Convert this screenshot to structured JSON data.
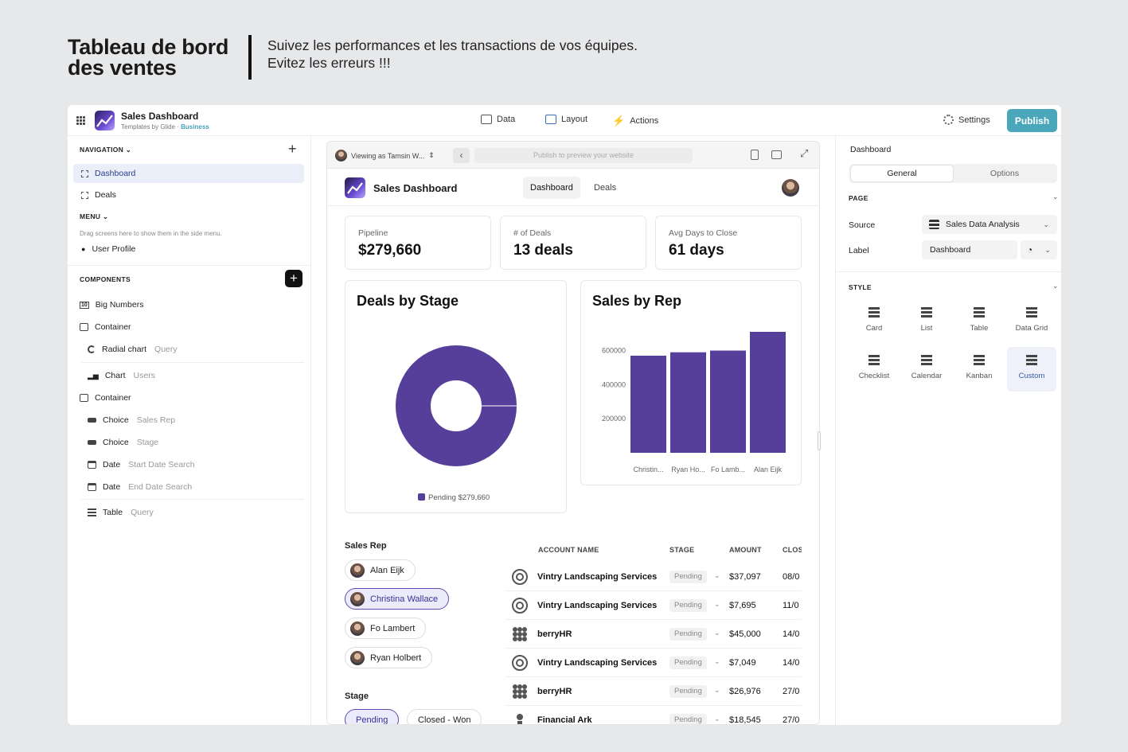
{
  "hero": {
    "title_line1": "Tableau de bord",
    "title_line2": "des ventes",
    "subtitle_line1": "Suivez les performances et les transactions de vos équipes.",
    "subtitle_line2": "Evitez les erreurs !!!"
  },
  "app": {
    "name": "Sales Dashboard",
    "sub_prefix": "Templates by Glide · ",
    "sub_plan": "Business"
  },
  "topnav": {
    "data": "Data",
    "layout": "Layout",
    "actions": "Actions",
    "settings": "Settings",
    "publish": "Publish"
  },
  "left": {
    "navigation_label": "NAVIGATION",
    "nav_items": [
      "Dashboard",
      "Deals"
    ],
    "menu_label": "MENU",
    "menu_hint": "Drag screens here to show them in the side menu.",
    "user_profile": "User Profile",
    "components_label": "COMPONENTS",
    "components": [
      {
        "name": "Big Numbers",
        "source": ""
      },
      {
        "name": "Container",
        "source": ""
      },
      {
        "name": "Radial chart",
        "source": "Query"
      },
      {
        "name": "Chart",
        "source": "Users"
      },
      {
        "name": "Container",
        "source": ""
      },
      {
        "name": "Choice",
        "source": "Sales Rep"
      },
      {
        "name": "Choice",
        "source": "Stage"
      },
      {
        "name": "Date",
        "source": "Start Date Search"
      },
      {
        "name": "Date",
        "source": "End Date Search"
      },
      {
        "name": "Table",
        "source": "Query"
      }
    ]
  },
  "preview": {
    "viewing": "Viewing as Tamsin W...",
    "url_placeholder": "Publish to preview your website",
    "site_title": "Sales Dashboard",
    "tabs": [
      "Dashboard",
      "Deals"
    ],
    "stats": [
      {
        "label": "Pipeline",
        "value": "$279,660"
      },
      {
        "label": "# of Deals",
        "value": "13 deals"
      },
      {
        "label": "Avg Days to Close",
        "value": "61 days"
      }
    ],
    "sales_rep_label": "Sales Rep",
    "reps": [
      "Alan Eijk",
      "Christina Wallace",
      "Fo Lambert",
      "Ryan Holbert"
    ],
    "stage_label": "Stage",
    "stages": [
      "Pending",
      "Closed - Won"
    ],
    "table": {
      "headers": [
        "ACCOUNT NAME",
        "STAGE",
        "AMOUNT",
        "CLOS"
      ],
      "rows": [
        {
          "account": "Vintry Landscaping Services",
          "stage": "Pending",
          "amount": "$37,097",
          "date": "08/0"
        },
        {
          "account": "Vintry Landscaping Services",
          "stage": "Pending",
          "amount": "$7,695",
          "date": "11/0"
        },
        {
          "account": "berryHR",
          "stage": "Pending",
          "amount": "$45,000",
          "date": "14/0"
        },
        {
          "account": "Vintry Landscaping Services",
          "stage": "Pending",
          "amount": "$7,049",
          "date": "14/0"
        },
        {
          "account": "berryHR",
          "stage": "Pending",
          "amount": "$26,976",
          "date": "27/0"
        },
        {
          "account": "Financial Ark",
          "stage": "Pending",
          "amount": "$18,545",
          "date": "27/0"
        }
      ]
    }
  },
  "chart_data": [
    {
      "type": "pie",
      "title": "Deals by Stage",
      "slices": [
        {
          "label": "Pending",
          "value": 279660,
          "display": "Pending $279,660"
        }
      ],
      "legend_position": "bottom",
      "color": "#553f9a"
    },
    {
      "type": "bar",
      "title": "Sales by Rep",
      "categories": [
        "Christin...",
        "Ryan Ho...",
        "Fo Lamb...",
        "Alan Eijk"
      ],
      "values": [
        570000,
        590000,
        600000,
        710000
      ],
      "ylim": [
        0,
        710000
      ],
      "yticks": [
        200000,
        400000,
        600000
      ],
      "color": "#553f9a"
    }
  ],
  "right": {
    "title": "Dashboard",
    "tabs": [
      "General",
      "Options"
    ],
    "page_label": "PAGE",
    "source_label": "Source",
    "source_value": "Sales Data Analysis",
    "label_label": "Label",
    "label_value": "Dashboard",
    "style_label": "STYLE",
    "styles": [
      "Card",
      "List",
      "Table",
      "Data Grid",
      "Checklist",
      "Calendar",
      "Kanban",
      "Custom"
    ],
    "selected_style": "Custom"
  }
}
